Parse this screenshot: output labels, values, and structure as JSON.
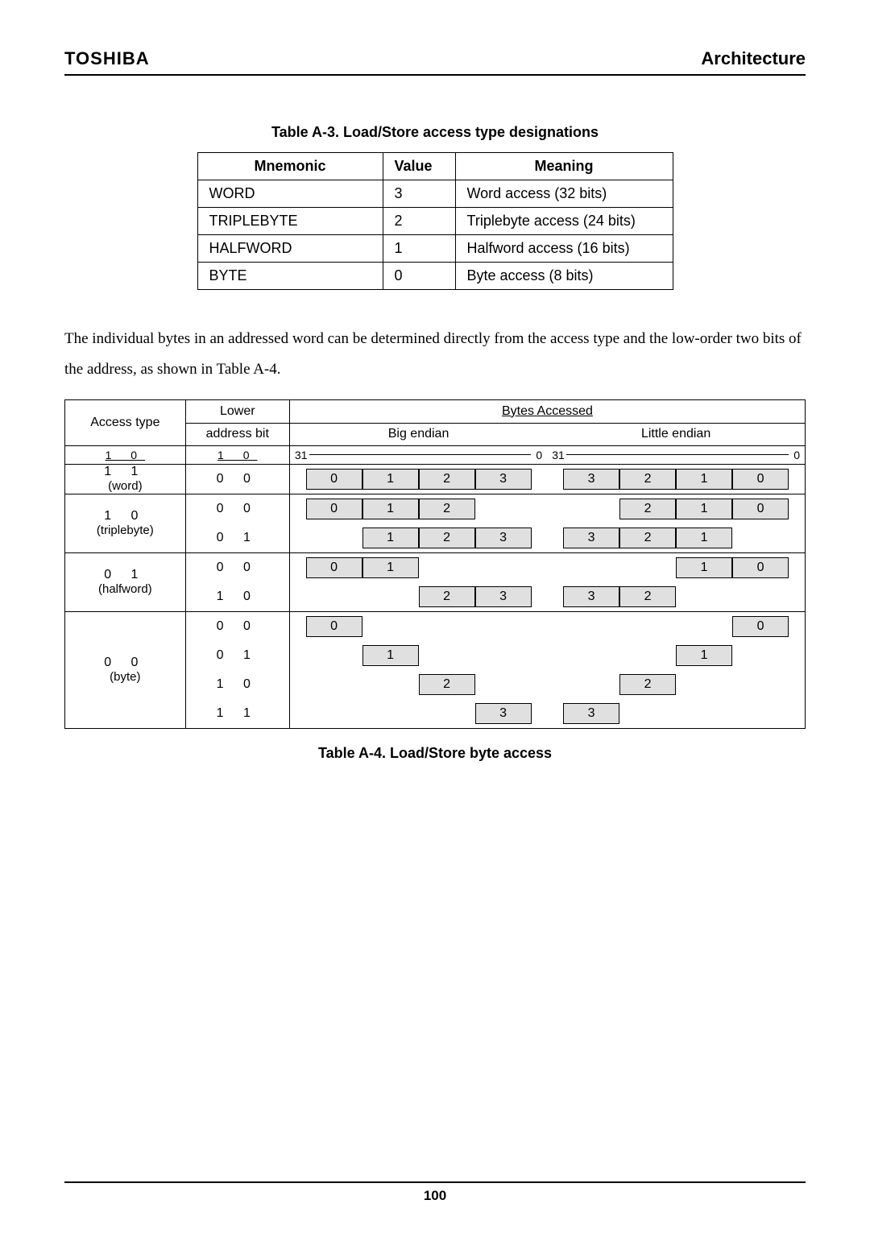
{
  "brand": "TOSHIBA",
  "chapter": "Architecture",
  "tableA3": {
    "caption": "Table A-3.  Load/Store access type designations",
    "headers": {
      "mnemonic": "Mnemonic",
      "value": "Value",
      "meaning": "Meaning"
    },
    "rows": [
      {
        "mnemonic": "WORD",
        "value": "3",
        "meaning": "Word access (32 bits)"
      },
      {
        "mnemonic": "TRIPLEBYTE",
        "value": "2",
        "meaning": "Triplebyte access (24 bits)"
      },
      {
        "mnemonic": "HALFWORD",
        "value": "1",
        "meaning": "Halfword access (16 bits)"
      },
      {
        "mnemonic": "BYTE",
        "value": "0",
        "meaning": "Byte access (8 bits)"
      }
    ]
  },
  "paragraph": "The individual bytes in an addressed word can be determined directly from the access type and the low-order two bits of the address, as shown in Table A-4.",
  "tableA4": {
    "caption": "Table A-4. Load/Store byte access",
    "headers": {
      "access_type": "Access type",
      "lower_addr": "Lower",
      "address_bit": "address bit",
      "bytes_accessed": "Bytes Accessed",
      "big_endian": "Big endian",
      "little_endian": "Little endian",
      "bit_hi": "31",
      "bit_lo": "0",
      "access_bits": "1   0",
      "addr_bits": "1   0"
    },
    "groups": [
      {
        "access_label": "1   1\n(word)",
        "rows": [
          {
            "addr": "0   0",
            "be": [
              "0",
              "1",
              "2",
              "3"
            ],
            "le": [
              "3",
              "2",
              "1",
              "0"
            ]
          }
        ]
      },
      {
        "access_label": "1   0\n(triplebyte)",
        "rows": [
          {
            "addr": "0   0",
            "be": [
              "0",
              "1",
              "2",
              ""
            ],
            "le": [
              "",
              "2",
              "1",
              "0"
            ]
          },
          {
            "addr": "0   1",
            "be": [
              "",
              "1",
              "2",
              "3"
            ],
            "le": [
              "3",
              "2",
              "1",
              ""
            ]
          }
        ]
      },
      {
        "access_label": "0   1\n(halfword)",
        "rows": [
          {
            "addr": "0   0",
            "be": [
              "0",
              "1",
              "",
              ""
            ],
            "le": [
              "",
              "",
              "1",
              "0"
            ]
          },
          {
            "addr": "1   0",
            "be": [
              "",
              "",
              "2",
              "3"
            ],
            "le": [
              "3",
              "2",
              "",
              ""
            ]
          }
        ]
      },
      {
        "access_label": "0   0\n(byte)",
        "rows": [
          {
            "addr": "0   0",
            "be": [
              "0",
              "",
              "",
              ""
            ],
            "le": [
              "",
              "",
              "",
              "0"
            ]
          },
          {
            "addr": "0   1",
            "be": [
              "",
              "1",
              "",
              ""
            ],
            "le": [
              "",
              "",
              "1",
              ""
            ]
          },
          {
            "addr": "1   0",
            "be": [
              "",
              "",
              "2",
              ""
            ],
            "le": [
              "",
              "2",
              "",
              ""
            ]
          },
          {
            "addr": "1   1",
            "be": [
              "",
              "",
              "",
              "3"
            ],
            "le": [
              "3",
              "",
              "",
              ""
            ]
          }
        ]
      }
    ]
  },
  "page_number": "100",
  "colors": {
    "cell_fill": "#e0e0e0",
    "border": "#000000",
    "bg": "#ffffff"
  }
}
